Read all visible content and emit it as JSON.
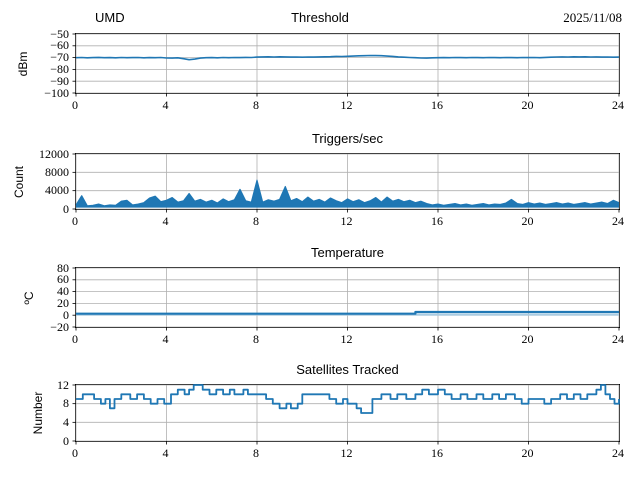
{
  "figure": {
    "header": {
      "left_label": "UMD",
      "title": "Threshold",
      "date": "2025/11/08"
    },
    "colors": {
      "line": "#1f77b4",
      "line_secondary": "#a9cce3",
      "grid": "#b0b0b0",
      "axis": "#000000",
      "background": "#ffffff",
      "text": "#000000"
    }
  },
  "chart_data": [
    {
      "type": "line",
      "title": "Threshold",
      "ylabel": "dBm",
      "xlim": [
        0,
        24
      ],
      "ylim": [
        -100,
        -50
      ],
      "xticks": [
        0,
        4,
        8,
        12,
        16,
        20,
        24
      ],
      "xtick_labels": [
        "0",
        "4",
        "8",
        "12",
        "16",
        "20",
        "24"
      ],
      "yticks": [
        -100,
        -90,
        -80,
        -70,
        -60,
        -50
      ],
      "ytick_labels": [
        "−100",
        "−90",
        "−80",
        "−70",
        "−60",
        "−50"
      ],
      "grid": true,
      "legend": "none",
      "series": [
        {
          "x_start": 0,
          "x_step": 0.25,
          "lw": 1.6,
          "y": [
            -70.1,
            -69.9,
            -70.2,
            -70.0,
            -69.8,
            -70.1,
            -70.0,
            -70.2,
            -69.9,
            -70.1,
            -70.0,
            -69.9,
            -70.2,
            -70.0,
            -70.1,
            -69.9,
            -70.3,
            -70.4,
            -70.2,
            -70.9,
            -71.8,
            -71.3,
            -70.4,
            -70.1,
            -70.0,
            -70.2,
            -69.9,
            -70.1,
            -69.9,
            -70.0,
            -69.8,
            -69.9,
            -69.6,
            -69.4,
            -69.3,
            -69.5,
            -69.3,
            -69.4,
            -69.6,
            -69.5,
            -69.7,
            -69.5,
            -69.6,
            -69.4,
            -69.3,
            -69.2,
            -69.0,
            -69.1,
            -68.9,
            -68.7,
            -68.5,
            -68.4,
            -68.2,
            -68.3,
            -68.4,
            -68.7,
            -69.0,
            -69.4,
            -69.7,
            -69.9,
            -70.1,
            -70.3,
            -70.4,
            -70.2,
            -70.1,
            -70.0,
            -70.1,
            -69.9,
            -70.0,
            -70.1,
            -69.9,
            -70.0,
            -70.1,
            -69.9,
            -70.0,
            -70.1,
            -69.9,
            -70.0,
            -70.1,
            -69.9,
            -70.0,
            -69.9,
            -70.1,
            -69.8,
            -69.7,
            -69.5,
            -69.4,
            -69.5,
            -69.3,
            -69.4,
            -69.3,
            -69.5,
            -69.4,
            -69.6,
            -69.5,
            -69.7,
            -69.6
          ]
        }
      ]
    },
    {
      "type": "line",
      "title": "Triggers/sec",
      "ylabel": "Count",
      "xlim": [
        0,
        24
      ],
      "ylim": [
        0,
        12000
      ],
      "xticks": [
        0,
        4,
        8,
        12,
        16,
        20,
        24
      ],
      "xtick_labels": [
        "0",
        "4",
        "8",
        "12",
        "16",
        "20",
        "24"
      ],
      "yticks": [
        0,
        4000,
        8000,
        12000
      ],
      "ytick_labels": [
        "0",
        "4000",
        "8000",
        "12000"
      ],
      "grid": true,
      "legend": "none",
      "series": [
        {
          "x_start": 0,
          "x_step": 0.25,
          "lw": 1.1,
          "fill_to": 300,
          "y": [
            900,
            2900,
            700,
            800,
            1100,
            700,
            900,
            800,
            1700,
            1900,
            900,
            1100,
            1400,
            2400,
            2800,
            1600,
            1900,
            2500,
            1500,
            1800,
            3400,
            1700,
            2100,
            1500,
            1900,
            1300,
            2200,
            1600,
            2000,
            4300,
            1800,
            1500,
            6300,
            1500,
            2000,
            1700,
            2100,
            4900,
            1800,
            2300,
            1600,
            2600,
            1700,
            2100,
            1500,
            2400,
            1800,
            1400,
            2200,
            1600,
            2000,
            1400,
            1800,
            2500,
            1500,
            2600,
            1700,
            2100,
            1600,
            1900,
            1400,
            1700,
            1200,
            900,
            1100,
            800,
            1000,
            1200,
            900,
            1100,
            800,
            1000,
            1200,
            900,
            1100,
            1000,
            1300,
            2100,
            1200,
            1000,
            1400,
            1100,
            1300,
            1000,
            1200,
            1400,
            1100,
            1300,
            1000,
            1200,
            1400,
            1100,
            1300,
            1500,
            1200,
            1900,
            1400
          ]
        }
      ]
    },
    {
      "type": "line",
      "title": "Temperature",
      "ylabel": "ºC",
      "xlim": [
        0,
        24
      ],
      "ylim": [
        -20,
        80
      ],
      "xticks": [
        0,
        4,
        8,
        12,
        16,
        20,
        24
      ],
      "xtick_labels": [
        "0",
        "4",
        "8",
        "12",
        "16",
        "20",
        "24"
      ],
      "yticks": [
        -20,
        0,
        20,
        40,
        60,
        80
      ],
      "ytick_labels": [
        "−20",
        "0",
        "20",
        "40",
        "60",
        "80"
      ],
      "grid": true,
      "legend": "none",
      "series": [
        {
          "x": [
            0,
            24
          ],
          "y": [
            1.0,
            1.0
          ],
          "step": true,
          "lw": 2.0,
          "color_key": "line_secondary"
        },
        {
          "x": [
            0,
            15,
            24
          ],
          "y": [
            2.5,
            5.5,
            5.5
          ],
          "step": true,
          "lw": 2.2
        }
      ]
    },
    {
      "type": "line",
      "title": "Satellites Tracked",
      "ylabel": "Number",
      "xlim": [
        0,
        24
      ],
      "ylim": [
        0,
        12
      ],
      "xticks": [
        0,
        4,
        8,
        12,
        16,
        20,
        24
      ],
      "xtick_labels": [
        "0",
        "4",
        "8",
        "12",
        "16",
        "20",
        "24"
      ],
      "yticks": [
        0,
        4,
        8,
        12
      ],
      "ytick_labels": [
        "0",
        "4",
        "8",
        "12"
      ],
      "grid": true,
      "legend": "none",
      "series": [
        {
          "step": true,
          "lw": 1.8,
          "x": [
            0,
            0.3,
            0.8,
            1.1,
            1.3,
            1.5,
            1.7,
            2.0,
            2.4,
            2.7,
            3.0,
            3.3,
            3.6,
            3.9,
            4.2,
            4.5,
            4.8,
            5.0,
            5.2,
            5.6,
            5.9,
            6.2,
            6.5,
            6.8,
            7.0,
            7.4,
            7.6,
            8.0,
            8.4,
            8.7,
            9.0,
            9.3,
            9.5,
            9.8,
            10.0,
            10.4,
            11.2,
            11.5,
            11.8,
            12.0,
            12.4,
            12.6,
            13.1,
            13.5,
            13.9,
            14.2,
            14.6,
            15.0,
            15.3,
            15.6,
            16.0,
            16.3,
            16.6,
            17.0,
            17.3,
            17.7,
            18.0,
            18.4,
            18.7,
            19.0,
            19.4,
            19.7,
            20.0,
            20.7,
            21.0,
            21.4,
            21.7,
            22.0,
            22.3,
            22.6,
            23.0,
            23.2,
            23.4,
            23.6,
            23.8,
            24.0
          ],
          "y": [
            9,
            10,
            9,
            8,
            9,
            7,
            9,
            10,
            9,
            10,
            9,
            8,
            9,
            8,
            10,
            11,
            10,
            11,
            12,
            11,
            10,
            11,
            10,
            11,
            10,
            11,
            10,
            10,
            9,
            8,
            7,
            8,
            7,
            8,
            10,
            10,
            9,
            8,
            9,
            8,
            7,
            6,
            9,
            10,
            9,
            10,
            9,
            10,
            11,
            10,
            11,
            10,
            9,
            10,
            9,
            10,
            9,
            10,
            9,
            10,
            9,
            8,
            9,
            8,
            9,
            10,
            9,
            10,
            9,
            10,
            11,
            12,
            10,
            9,
            8,
            9
          ]
        }
      ]
    }
  ]
}
